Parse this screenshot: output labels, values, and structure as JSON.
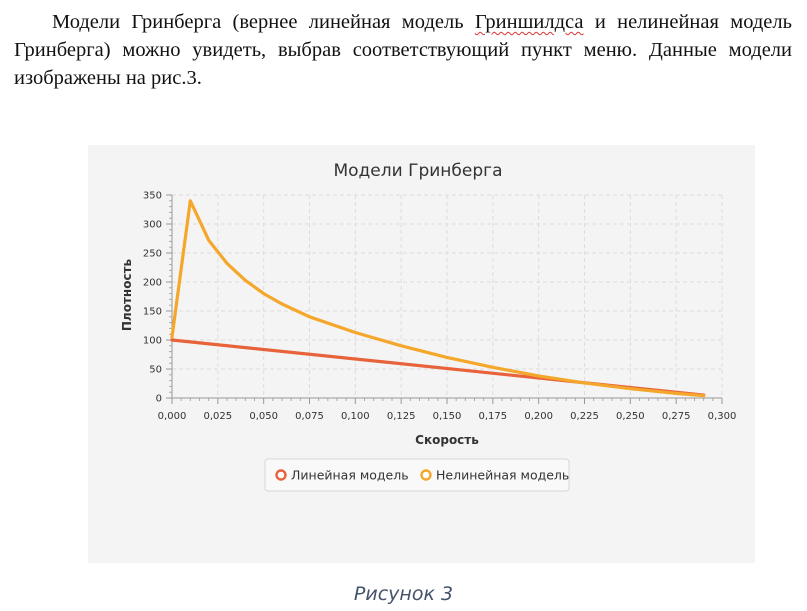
{
  "document": {
    "paragraph_before": "Модели Гринберга (вернее линейная модель ",
    "paragraph_underlined": "Гриншилдса",
    "paragraph_after": " и нелинейная модель Гринберга) можно увидеть, выбрав соответствующий пункт меню. Данные модели изображены на рис.3.",
    "caption": "Рисунок 3"
  },
  "colors": {
    "linear": "#e8623a",
    "nonlinear": "#f4a72a",
    "grid": "#dddddd",
    "background": "#f4f4f4"
  },
  "chart_data": {
    "type": "line",
    "title": "Модели Гринберга",
    "xlabel": "Скорость",
    "ylabel": "Плотность",
    "xlim": [
      0,
      0.3
    ],
    "ylim": [
      0,
      350
    ],
    "x_ticks": [
      "0,000",
      "0,025",
      "0,050",
      "0,075",
      "0,100",
      "0,125",
      "0,150",
      "0,175",
      "0,200",
      "0,225",
      "0,250",
      "0,275",
      "0,300"
    ],
    "y_ticks": [
      "0",
      "50",
      "100",
      "150",
      "200",
      "250",
      "300",
      "350"
    ],
    "grid": true,
    "legend_position": "bottom",
    "series": [
      {
        "name": "Линейная модель",
        "color_key": "linear",
        "x": [
          0,
          0.29
        ],
        "y": [
          100,
          5
        ]
      },
      {
        "name": "Нелинейная модель",
        "color_key": "nonlinear",
        "x": [
          0,
          0.01,
          0.02,
          0.03,
          0.04,
          0.05,
          0.06,
          0.075,
          0.1,
          0.125,
          0.15,
          0.175,
          0.2,
          0.225,
          0.25,
          0.275,
          0.29
        ],
        "y": [
          105,
          340,
          272,
          232,
          203,
          180,
          162,
          140,
          113,
          90,
          70,
          53,
          38,
          26,
          16,
          8,
          4
        ]
      }
    ]
  }
}
